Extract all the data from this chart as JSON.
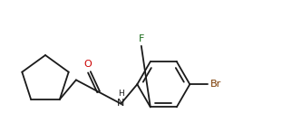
{
  "bg_color": "#ffffff",
  "line_color": "#1a1a1a",
  "atom_color_O": "#cc0000",
  "atom_color_N": "#1a1a1a",
  "atom_color_F": "#1a6b1a",
  "atom_color_Br": "#7a3a00",
  "linewidth": 1.3,
  "fig_width": 3.22,
  "fig_height": 1.36,
  "dpi": 100,
  "xlim": [
    0,
    322
  ],
  "ylim": [
    0,
    136
  ]
}
